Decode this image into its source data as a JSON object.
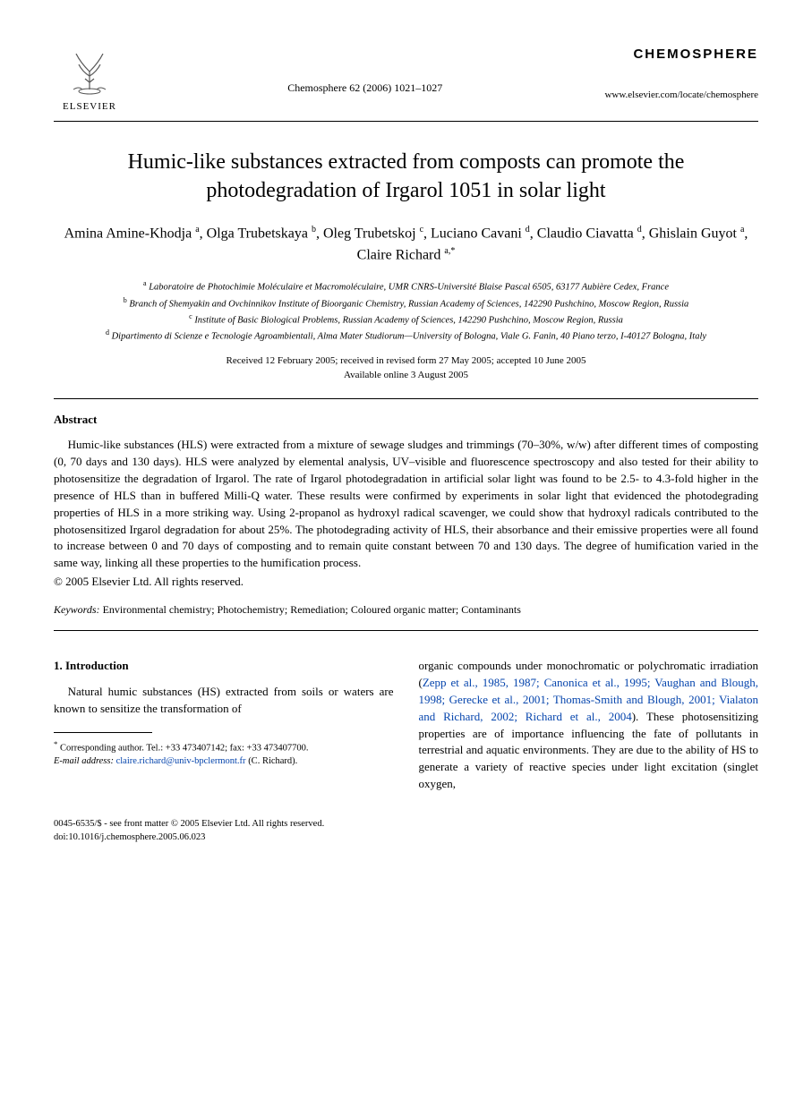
{
  "header": {
    "publisher": "ELSEVIER",
    "citation": "Chemosphere 62 (2006) 1021–1027",
    "journal_name": "CHEMOSPHERE",
    "journal_url": "www.elsevier.com/locate/chemosphere"
  },
  "title": "Humic-like substances extracted from composts can promote the photodegradation of Irgarol 1051 in solar light",
  "authors_html": "Amina Amine-Khodja <sup>a</sup>, Olga Trubetskaya <sup>b</sup>, Oleg Trubetskoj <sup>c</sup>, Luciano Cavani <sup>d</sup>, Claudio Ciavatta <sup>d</sup>, Ghislain Guyot <sup>a</sup>, Claire Richard <sup>a,*</sup>",
  "affiliations": [
    {
      "mark": "a",
      "text": "Laboratoire de Photochimie Moléculaire et Macromoléculaire, UMR CNRS-Université Blaise Pascal 6505, 63177 Aubière Cedex, France"
    },
    {
      "mark": "b",
      "text": "Branch of Shemyakin and Ovchinnikov Institute of Bioorganic Chemistry, Russian Academy of Sciences, 142290 Pushchino, Moscow Region, Russia"
    },
    {
      "mark": "c",
      "text": "Institute of Basic Biological Problems, Russian Academy of Sciences, 142290 Pushchino, Moscow Region, Russia"
    },
    {
      "mark": "d",
      "text": "Dipartimento di Scienze e Tecnologie Agroambientali, Alma Mater Studiorum—University of Bologna, Viale G. Fanin, 40 Piano terzo, I-40127 Bologna, Italy"
    }
  ],
  "dates": {
    "line1": "Received 12 February 2005; received in revised form 27 May 2005; accepted 10 June 2005",
    "line2": "Available online 3 August 2005"
  },
  "abstract": {
    "heading": "Abstract",
    "body": "Humic-like substances (HLS) were extracted from a mixture of sewage sludges and trimmings (70–30%, w/w) after different times of composting (0, 70 days and 130 days). HLS were analyzed by elemental analysis, UV–visible and fluorescence spectroscopy and also tested for their ability to photosensitize the degradation of Irgarol. The rate of Irgarol photodegradation in artificial solar light was found to be 2.5- to 4.3-fold higher in the presence of HLS than in buffered Milli-Q water. These results were confirmed by experiments in solar light that evidenced the photodegrading properties of HLS in a more striking way. Using 2-propanol as hydroxyl radical scavenger, we could show that hydroxyl radicals contributed to the photosensitized Irgarol degradation for about 25%. The photodegrading activity of HLS, their absorbance and their emissive properties were all found to increase between 0 and 70 days of composting and to remain quite constant between 70 and 130 days. The degree of humification varied in the same way, linking all these properties to the humification process.",
    "copyright": "© 2005 Elsevier Ltd. All rights reserved."
  },
  "keywords": {
    "label": "Keywords:",
    "text": "Environmental chemistry; Photochemistry; Remediation; Coloured organic matter; Contaminants"
  },
  "intro": {
    "heading": "1. Introduction",
    "left_para": "Natural humic substances (HS) extracted from soils or waters are known to sensitize the transformation of",
    "right_para_pre": "organic compounds under monochromatic or polychromatic irradiation (",
    "right_refs": "Zepp et al., 1985, 1987; Canonica et al., 1995; Vaughan and Blough, 1998; Gerecke et al., 2001; Thomas-Smith and Blough, 2001; Vialaton and Richard, 2002; Richard et al., 2004",
    "right_para_post": "). These photosensitizing properties are of importance influencing the fate of pollutants in terrestrial and aquatic environments. They are due to the ability of HS to generate a variety of reactive species under light excitation (singlet oxygen,"
  },
  "footnote": {
    "corresponding": "Corresponding author. Tel.: +33 473407142; fax: +33 473407700.",
    "email_label": "E-mail address:",
    "email": "claire.richard@univ-bpclermont.fr",
    "email_suffix": "(C. Richard)."
  },
  "footer": {
    "line1": "0045-6535/$ - see front matter © 2005 Elsevier Ltd. All rights reserved.",
    "line2": "doi:10.1016/j.chemosphere.2005.06.023"
  },
  "colors": {
    "link": "#0645ad",
    "text": "#000000",
    "background": "#ffffff"
  },
  "typography": {
    "body_fontsize": 13,
    "title_fontsize": 24,
    "authors_fontsize": 16,
    "affil_fontsize": 10.5,
    "footnote_fontsize": 10.5,
    "font_family": "Georgia, Times New Roman, serif"
  }
}
